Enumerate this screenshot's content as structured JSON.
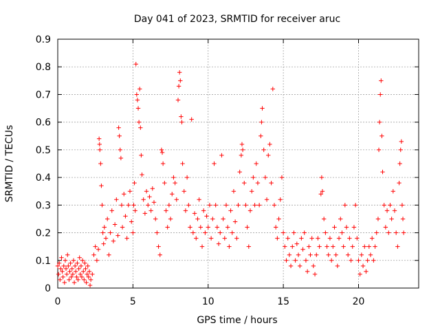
{
  "chart_data": {
    "type": "scatter",
    "title": "Day 041 of 2023, SRMTID for receiver aruc",
    "xlabel": "GPS time / hours",
    "ylabel": "SRMTID / TECUs",
    "xlim": [
      0,
      24
    ],
    "ylim": [
      0,
      0.9
    ],
    "xticks": [
      0,
      5,
      10,
      15,
      20
    ],
    "yticks": [
      0,
      0.1,
      0.2,
      0.3,
      0.4,
      0.5,
      0.6,
      0.7,
      0.8,
      0.9
    ],
    "xtick_labels": [
      "0",
      "5",
      "10",
      "15",
      "20"
    ],
    "ytick_labels": [
      "0",
      "0.1",
      "0.2",
      "0.3",
      "0.4",
      "0.5",
      "0.6",
      "0.7",
      "0.8",
      "0.9"
    ],
    "grid": true,
    "marker": "+",
    "color": "#ff0000",
    "series": [
      {
        "name": "SRMTID",
        "points": [
          [
            0.0,
            0.08
          ],
          [
            0.05,
            0.05
          ],
          [
            0.1,
            0.09
          ],
          [
            0.15,
            0.03
          ],
          [
            0.2,
            0.07
          ],
          [
            0.25,
            0.11
          ],
          [
            0.3,
            0.06
          ],
          [
            0.35,
            0.04
          ],
          [
            0.4,
            0.08
          ],
          [
            0.45,
            0.02
          ],
          [
            0.5,
            0.1
          ],
          [
            0.55,
            0.07
          ],
          [
            0.6,
            0.05
          ],
          [
            0.65,
            0.12
          ],
          [
            0.7,
            0.08
          ],
          [
            0.75,
            0.03
          ],
          [
            0.8,
            0.06
          ],
          [
            0.85,
            0.09
          ],
          [
            0.9,
            0.04
          ],
          [
            0.95,
            0.07
          ],
          [
            1.0,
            0.05
          ],
          [
            1.05,
            0.1
          ],
          [
            1.1,
            0.02
          ],
          [
            1.15,
            0.08
          ],
          [
            1.2,
            0.06
          ],
          [
            1.25,
            0.04
          ],
          [
            1.3,
            0.09
          ],
          [
            1.35,
            0.03
          ],
          [
            1.4,
            0.07
          ],
          [
            1.45,
            0.11
          ],
          [
            1.5,
            0.05
          ],
          [
            1.55,
            0.08
          ],
          [
            1.6,
            0.04
          ],
          [
            1.65,
            0.1
          ],
          [
            1.7,
            0.06
          ],
          [
            1.75,
            0.03
          ],
          [
            1.8,
            0.09
          ],
          [
            1.85,
            0.07
          ],
          [
            1.9,
            0.02
          ],
          [
            1.95,
            0.05
          ],
          [
            2.0,
            0.08
          ],
          [
            2.05,
            0.04
          ],
          [
            2.1,
            0.06
          ],
          [
            2.15,
            0.01
          ],
          [
            2.2,
            0.03
          ],
          [
            2.3,
            0.05
          ],
          [
            2.4,
            0.12
          ],
          [
            2.5,
            0.15
          ],
          [
            2.6,
            0.1
          ],
          [
            2.7,
            0.14
          ],
          [
            2.75,
            0.54
          ],
          [
            2.78,
            0.52
          ],
          [
            2.8,
            0.5
          ],
          [
            2.85,
            0.45
          ],
          [
            2.9,
            0.37
          ],
          [
            2.95,
            0.3
          ],
          [
            3.0,
            0.2
          ],
          [
            3.05,
            0.16
          ],
          [
            3.1,
            0.22
          ],
          [
            3.2,
            0.18
          ],
          [
            3.3,
            0.25
          ],
          [
            3.4,
            0.12
          ],
          [
            3.5,
            0.2
          ],
          [
            3.6,
            0.28
          ],
          [
            3.7,
            0.17
          ],
          [
            3.8,
            0.23
          ],
          [
            3.9,
            0.32
          ],
          [
            4.0,
            0.19
          ],
          [
            4.05,
            0.58
          ],
          [
            4.1,
            0.55
          ],
          [
            4.15,
            0.5
          ],
          [
            4.2,
            0.47
          ],
          [
            4.25,
            0.3
          ],
          [
            4.3,
            0.22
          ],
          [
            4.4,
            0.34
          ],
          [
            4.5,
            0.26
          ],
          [
            4.6,
            0.18
          ],
          [
            4.7,
            0.3
          ],
          [
            4.8,
            0.35
          ],
          [
            4.9,
            0.24
          ],
          [
            5.0,
            0.2
          ],
          [
            5.05,
            0.3
          ],
          [
            5.1,
            0.38
          ],
          [
            5.15,
            0.28
          ],
          [
            5.2,
            0.81
          ],
          [
            5.25,
            0.7
          ],
          [
            5.3,
            0.68
          ],
          [
            5.35,
            0.65
          ],
          [
            5.4,
            0.6
          ],
          [
            5.45,
            0.72
          ],
          [
            5.5,
            0.58
          ],
          [
            5.55,
            0.48
          ],
          [
            5.6,
            0.41
          ],
          [
            5.7,
            0.32
          ],
          [
            5.8,
            0.27
          ],
          [
            5.9,
            0.35
          ],
          [
            6.0,
            0.3
          ],
          [
            6.1,
            0.33
          ],
          [
            6.2,
            0.28
          ],
          [
            6.3,
            0.36
          ],
          [
            6.4,
            0.31
          ],
          [
            6.5,
            0.25
          ],
          [
            6.6,
            0.2
          ],
          [
            6.7,
            0.15
          ],
          [
            6.8,
            0.12
          ],
          [
            6.9,
            0.5
          ],
          [
            6.95,
            0.49
          ],
          [
            7.0,
            0.45
          ],
          [
            7.1,
            0.38
          ],
          [
            7.2,
            0.28
          ],
          [
            7.3,
            0.22
          ],
          [
            7.4,
            0.3
          ],
          [
            7.5,
            0.25
          ],
          [
            7.6,
            0.34
          ],
          [
            7.7,
            0.4
          ],
          [
            7.8,
            0.38
          ],
          [
            7.9,
            0.32
          ],
          [
            8.0,
            0.68
          ],
          [
            8.05,
            0.73
          ],
          [
            8.1,
            0.78
          ],
          [
            8.15,
            0.75
          ],
          [
            8.2,
            0.62
          ],
          [
            8.25,
            0.6
          ],
          [
            8.3,
            0.45
          ],
          [
            8.4,
            0.35
          ],
          [
            8.5,
            0.28
          ],
          [
            8.6,
            0.4
          ],
          [
            8.7,
            0.3
          ],
          [
            8.8,
            0.22
          ],
          [
            8.9,
            0.61
          ],
          [
            9.0,
            0.2
          ],
          [
            9.1,
            0.27
          ],
          [
            9.2,
            0.18
          ],
          [
            9.3,
            0.25
          ],
          [
            9.4,
            0.32
          ],
          [
            9.5,
            0.22
          ],
          [
            9.6,
            0.15
          ],
          [
            9.7,
            0.28
          ],
          [
            9.8,
            0.2
          ],
          [
            9.9,
            0.26
          ],
          [
            10.0,
            0.22
          ],
          [
            10.1,
            0.3
          ],
          [
            10.2,
            0.18
          ],
          [
            10.3,
            0.25
          ],
          [
            10.4,
            0.45
          ],
          [
            10.5,
            0.3
          ],
          [
            10.6,
            0.22
          ],
          [
            10.7,
            0.16
          ],
          [
            10.8,
            0.2
          ],
          [
            10.9,
            0.48
          ],
          [
            11.0,
            0.25
          ],
          [
            11.1,
            0.18
          ],
          [
            11.2,
            0.3
          ],
          [
            11.3,
            0.22
          ],
          [
            11.4,
            0.15
          ],
          [
            11.5,
            0.28
          ],
          [
            11.6,
            0.2
          ],
          [
            11.7,
            0.35
          ],
          [
            11.8,
            0.24
          ],
          [
            11.9,
            0.18
          ],
          [
            12.0,
            0.3
          ],
          [
            12.1,
            0.42
          ],
          [
            12.2,
            0.48
          ],
          [
            12.25,
            0.52
          ],
          [
            12.3,
            0.5
          ],
          [
            12.4,
            0.38
          ],
          [
            12.5,
            0.3
          ],
          [
            12.6,
            0.22
          ],
          [
            12.7,
            0.15
          ],
          [
            12.8,
            0.28
          ],
          [
            12.9,
            0.35
          ],
          [
            13.0,
            0.4
          ],
          [
            13.1,
            0.3
          ],
          [
            13.2,
            0.45
          ],
          [
            13.3,
            0.38
          ],
          [
            13.4,
            0.3
          ],
          [
            13.5,
            0.55
          ],
          [
            13.55,
            0.6
          ],
          [
            13.6,
            0.65
          ],
          [
            13.7,
            0.5
          ],
          [
            13.8,
            0.4
          ],
          [
            13.9,
            0.32
          ],
          [
            14.0,
            0.48
          ],
          [
            14.1,
            0.52
          ],
          [
            14.2,
            0.38
          ],
          [
            14.3,
            0.72
          ],
          [
            14.4,
            0.3
          ],
          [
            14.5,
            0.22
          ],
          [
            14.6,
            0.18
          ],
          [
            14.7,
            0.25
          ],
          [
            14.8,
            0.32
          ],
          [
            14.9,
            0.4
          ],
          [
            15.0,
            0.2
          ],
          [
            15.1,
            0.15
          ],
          [
            15.2,
            0.1
          ],
          [
            15.3,
            0.18
          ],
          [
            15.4,
            0.12
          ],
          [
            15.5,
            0.08
          ],
          [
            15.6,
            0.15
          ],
          [
            15.7,
            0.2
          ],
          [
            15.8,
            0.1
          ],
          [
            15.9,
            0.16
          ],
          [
            16.0,
            0.12
          ],
          [
            16.1,
            0.08
          ],
          [
            16.2,
            0.18
          ],
          [
            16.3,
            0.14
          ],
          [
            16.4,
            0.2
          ],
          [
            16.5,
            0.1
          ],
          [
            16.6,
            0.06
          ],
          [
            16.7,
            0.15
          ],
          [
            16.8,
            0.12
          ],
          [
            16.9,
            0.18
          ],
          [
            17.0,
            0.08
          ],
          [
            17.1,
            0.05
          ],
          [
            17.2,
            0.12
          ],
          [
            17.3,
            0.18
          ],
          [
            17.4,
            0.15
          ],
          [
            17.5,
            0.34
          ],
          [
            17.55,
            0.4
          ],
          [
            17.6,
            0.35
          ],
          [
            17.7,
            0.25
          ],
          [
            17.8,
            0.2
          ],
          [
            17.9,
            0.15
          ],
          [
            18.0,
            0.12
          ],
          [
            18.1,
            0.18
          ],
          [
            18.2,
            0.1
          ],
          [
            18.3,
            0.15
          ],
          [
            18.4,
            0.22
          ],
          [
            18.5,
            0.12
          ],
          [
            18.6,
            0.08
          ],
          [
            18.7,
            0.18
          ],
          [
            18.8,
            0.25
          ],
          [
            18.9,
            0.2
          ],
          [
            19.0,
            0.15
          ],
          [
            19.1,
            0.3
          ],
          [
            19.2,
            0.22
          ],
          [
            19.3,
            0.12
          ],
          [
            19.4,
            0.18
          ],
          [
            19.5,
            0.1
          ],
          [
            19.6,
            0.15
          ],
          [
            19.7,
            0.22
          ],
          [
            19.8,
            0.3
          ],
          [
            19.9,
            0.18
          ],
          [
            20.0,
            0.1
          ],
          [
            20.1,
            0.05
          ],
          [
            20.2,
            0.12
          ],
          [
            20.3,
            0.08
          ],
          [
            20.4,
            0.15
          ],
          [
            20.5,
            0.06
          ],
          [
            20.6,
            0.1
          ],
          [
            20.7,
            0.15
          ],
          [
            20.8,
            0.12
          ],
          [
            20.9,
            0.18
          ],
          [
            21.0,
            0.1
          ],
          [
            21.1,
            0.15
          ],
          [
            21.2,
            0.2
          ],
          [
            21.3,
            0.25
          ],
          [
            21.35,
            0.5
          ],
          [
            21.4,
            0.6
          ],
          [
            21.45,
            0.7
          ],
          [
            21.5,
            0.75
          ],
          [
            21.55,
            0.55
          ],
          [
            21.6,
            0.42
          ],
          [
            21.7,
            0.3
          ],
          [
            21.8,
            0.22
          ],
          [
            21.9,
            0.28
          ],
          [
            22.0,
            0.2
          ],
          [
            22.1,
            0.3
          ],
          [
            22.2,
            0.25
          ],
          [
            22.3,
            0.35
          ],
          [
            22.4,
            0.28
          ],
          [
            22.5,
            0.2
          ],
          [
            22.6,
            0.15
          ],
          [
            22.7,
            0.38
          ],
          [
            22.75,
            0.45
          ],
          [
            22.8,
            0.5
          ],
          [
            22.85,
            0.53
          ],
          [
            22.9,
            0.3
          ],
          [
            22.95,
            0.25
          ],
          [
            23.0,
            0.2
          ]
        ]
      }
    ]
  }
}
